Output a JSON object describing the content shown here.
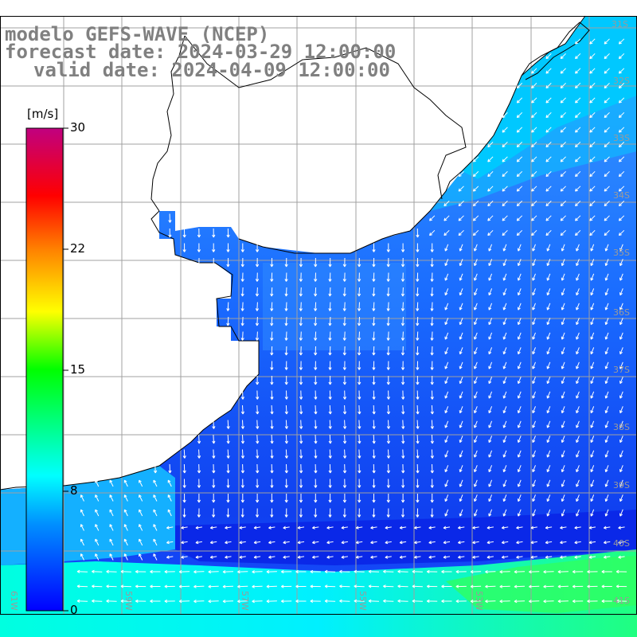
{
  "title": {
    "line1": "modelo GEFS-WAVE (NCEP)",
    "line2": "forecast date: 2024-03-29 12:00:00",
    "line3": "valid date: 2024-04-09 12:00:00"
  },
  "colorbar": {
    "unit": "[m/s]",
    "ticks": [
      "30",
      "22",
      "15",
      "8",
      "0"
    ],
    "colors": [
      "#0000ff",
      "#00a0ff",
      "#00ffff",
      "#00ff00",
      "#ffff00",
      "#ff8000",
      "#ff0000",
      "#c00080"
    ]
  },
  "lat_labels": [
    "31S",
    "32S",
    "33S",
    "34S",
    "35S",
    "36S",
    "37S",
    "38S",
    "39S",
    "40S",
    "41S"
  ],
  "lon_labels": [
    "61W",
    "59W",
    "57W",
    "55W",
    "53W"
  ],
  "colors": {
    "land": "#ffffff",
    "grid": "#a0a0a0",
    "coast": "#000000",
    "arrow": "#ffffff",
    "label_gray": "#808080"
  }
}
